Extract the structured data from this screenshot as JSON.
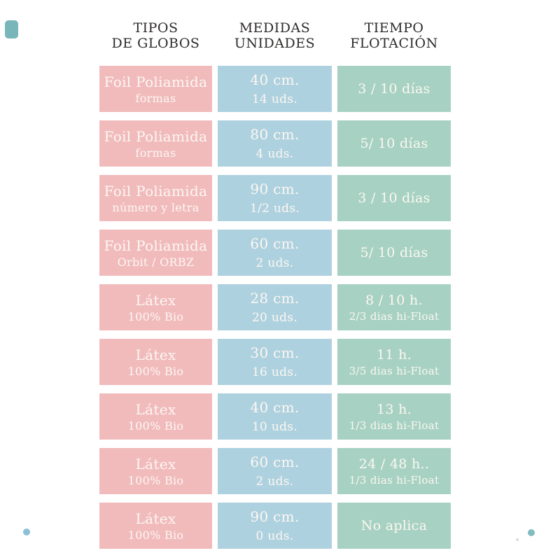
{
  "colors": {
    "cell-pink": "#f1bbbc",
    "cell-blue": "#aed1df",
    "cell-green": "#a7d2c3",
    "cell-text": "#fcf7f2",
    "header-text": "#2e2c2b",
    "square-teal": "#79b6ba",
    "dot-blue": "#8cc0d8",
    "dot-teal": "#82bcc0",
    "dot-faint": "#d2e0e0"
  },
  "table": {
    "headers": [
      {
        "line1": "TIPOS",
        "line2": "DE GLOBOS"
      },
      {
        "line1": "MEDIDAS",
        "line2": "UNIDADES"
      },
      {
        "line1": "TIEMPO",
        "line2": "FLOTACIÓN"
      }
    ],
    "rows": [
      {
        "tipo1": "Foil Poliamida",
        "tipo2": "formas",
        "medida1": "40 cm.",
        "medida2": "14 uds.",
        "tiempo1": "3 / 10 días",
        "tiempo2": ""
      },
      {
        "tipo1": "Foil Poliamida",
        "tipo2": "formas",
        "medida1": "80 cm.",
        "medida2": "4 uds.",
        "tiempo1": "5/ 10 días",
        "tiempo2": ""
      },
      {
        "tipo1": "Foil Poliamida",
        "tipo2": "número y letra",
        "medida1": "90 cm.",
        "medida2": "1/2 uds.",
        "tiempo1": "3 / 10 días",
        "tiempo2": ""
      },
      {
        "tipo1": "Foil Poliamida",
        "tipo2": "Orbit / ORBZ",
        "medida1": "60 cm.",
        "medida2": "2 uds.",
        "tiempo1": "5/ 10 días",
        "tiempo2": ""
      },
      {
        "tipo1": "Látex",
        "tipo2": "100% Bio",
        "medida1": "28 cm.",
        "medida2": "20 uds.",
        "tiempo1": "8 / 10 h.",
        "tiempo2": "2/3 dias hi-Float"
      },
      {
        "tipo1": "Látex",
        "tipo2": "100% Bio",
        "medida1": "30 cm.",
        "medida2": "16 uds.",
        "tiempo1": "11 h.",
        "tiempo2": "3/5 dias hi-Float"
      },
      {
        "tipo1": "Látex",
        "tipo2": "100% Bio",
        "medida1": "40 cm.",
        "medida2": "10 uds.",
        "tiempo1": "13 h.",
        "tiempo2": "1/3 dias hi-Float"
      },
      {
        "tipo1": "Látex",
        "tipo2": "100% Bio",
        "medida1": "60 cm.",
        "medida2": "2 uds.",
        "tiempo1": "24 / 48 h..",
        "tiempo2": "1/3 dias hi-Float"
      },
      {
        "tipo1": "Látex",
        "tipo2": "100% Bio",
        "medida1": "90 cm.",
        "medida2": "0 uds.",
        "tiempo1": "No aplica",
        "tiempo2": ""
      }
    ]
  },
  "chart_data": {
    "type": "table",
    "title": "",
    "columns": [
      "TIPOS DE GLOBOS",
      "MEDIDAS UNIDADES",
      "TIEMPO FLOTACIÓN"
    ],
    "rows": [
      [
        "Foil Poliamida formas",
        "40 cm. 14 uds.",
        "3 / 10 días"
      ],
      [
        "Foil Poliamida formas",
        "80 cm. 4 uds.",
        "5/ 10 días"
      ],
      [
        "Foil Poliamida número y letra",
        "90 cm. 1/2 uds.",
        "3 / 10 días"
      ],
      [
        "Foil Poliamida Orbit / ORBZ",
        "60 cm. 2 uds.",
        "5/ 10 días"
      ],
      [
        "Látex 100% Bio",
        "28 cm. 20 uds.",
        "8 / 10 h. 2/3 dias hi-Float"
      ],
      [
        "Látex 100% Bio",
        "30 cm. 16 uds.",
        "11 h. 3/5 dias hi-Float"
      ],
      [
        "Látex 100% Bio",
        "40 cm. 10 uds.",
        "13 h. 1/3 dias hi-Float"
      ],
      [
        "Látex 100% Bio",
        "60 cm. 2 uds.",
        "24 / 48 h.. 1/3 dias hi-Float"
      ],
      [
        "Látex 100% Bio",
        "90 cm. 0 uds.",
        "No aplica"
      ]
    ]
  }
}
